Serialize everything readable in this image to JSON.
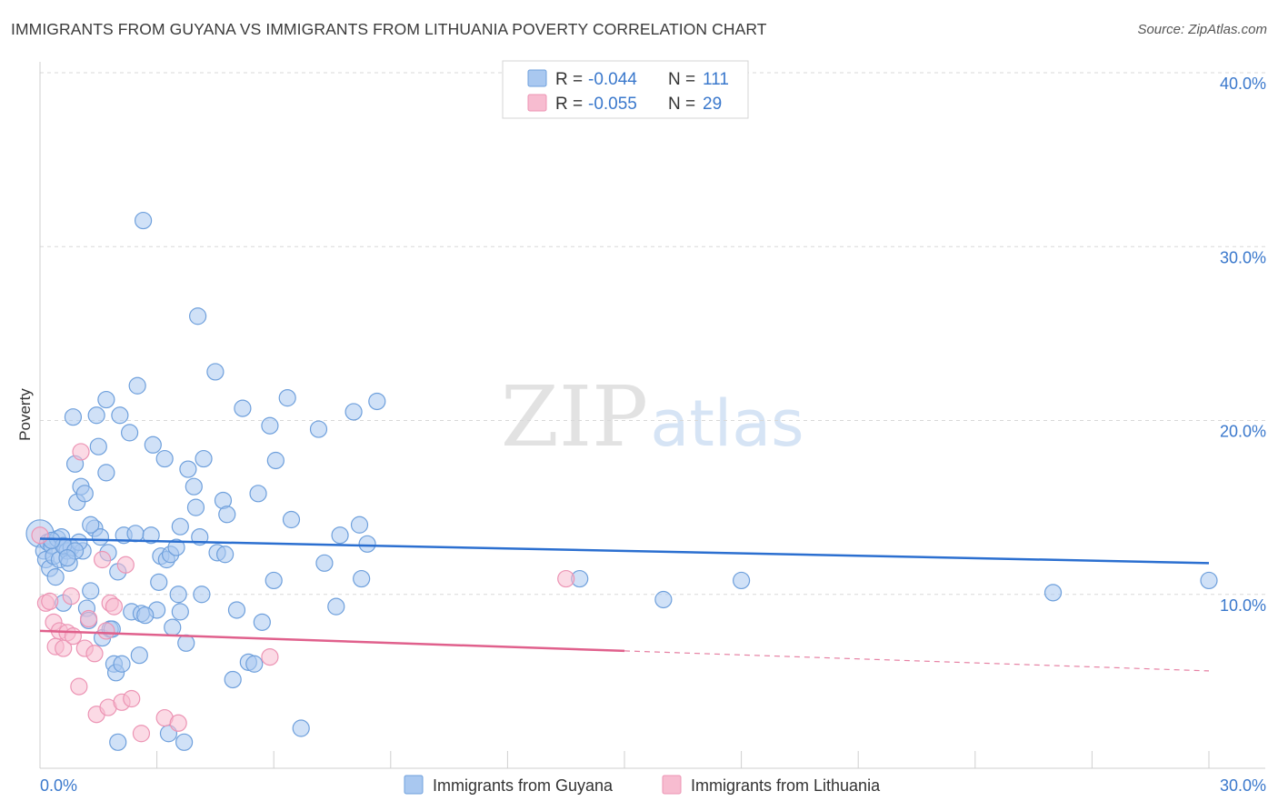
{
  "header": {
    "title": "IMMIGRANTS FROM GUYANA VS IMMIGRANTS FROM LITHUANIA POVERTY CORRELATION CHART",
    "source": "Source: ZipAtlas.com"
  },
  "watermark": {
    "zip": "ZIP",
    "atlas": "atlas"
  },
  "legend_top": [
    {
      "r_label": "R = ",
      "r_value": "-0.044",
      "n_label": "N = ",
      "n_value": "111"
    },
    {
      "r_label": "R = ",
      "r_value": "-0.055",
      "n_label": "N = ",
      "n_value": "29"
    }
  ],
  "colors": {
    "guyana_fill": "#a9c8f0",
    "guyana_stroke": "#6fa0dc",
    "guyana_line": "#2b6fd0",
    "lithuania_fill": "#f7bcd0",
    "lithuania_stroke": "#ec94b4",
    "lithuania_line": "#e0608c",
    "tick_label": "#3a78cc",
    "grid": "#d8d8d8"
  },
  "chart_data": {
    "type": "scatter",
    "title": "IMMIGRANTS FROM GUYANA VS IMMIGRANTS FROM LITHUANIA POVERTY CORRELATION CHART",
    "xlabel": "",
    "ylabel": "Poverty",
    "xlim": [
      0,
      30
    ],
    "ylim": [
      0,
      40
    ],
    "x_tick_labels": [
      "0.0%",
      "30.0%"
    ],
    "y_tick_labels": [
      "10.0%",
      "20.0%",
      "30.0%",
      "40.0%"
    ],
    "y_ticks": [
      10,
      20,
      30,
      40
    ],
    "grid": true,
    "legend_position": "bottom",
    "series": [
      {
        "name": "Immigrants from Guyana",
        "R": -0.044,
        "N": 111,
        "trend": {
          "x": [
            0,
            30
          ],
          "y": [
            13.2,
            11.8
          ],
          "dashed_from": null
        },
        "points": [
          [
            0.0,
            13.5
          ],
          [
            0.1,
            12.5
          ],
          [
            0.15,
            12.0
          ],
          [
            0.2,
            13.0
          ],
          [
            0.25,
            11.5
          ],
          [
            0.3,
            12.8
          ],
          [
            0.35,
            12.2
          ],
          [
            0.4,
            11.0
          ],
          [
            0.45,
            13.2
          ],
          [
            0.5,
            12.0
          ],
          [
            0.55,
            13.3
          ],
          [
            0.6,
            9.5
          ],
          [
            0.65,
            12.7
          ],
          [
            0.7,
            12.5
          ],
          [
            0.75,
            11.8
          ],
          [
            0.8,
            12.7
          ],
          [
            0.85,
            20.2
          ],
          [
            0.9,
            17.5
          ],
          [
            0.95,
            15.3
          ],
          [
            1.05,
            16.2
          ],
          [
            1.1,
            12.5
          ],
          [
            1.15,
            15.8
          ],
          [
            1.2,
            9.2
          ],
          [
            1.25,
            8.5
          ],
          [
            1.3,
            10.2
          ],
          [
            1.4,
            13.8
          ],
          [
            1.45,
            20.3
          ],
          [
            1.5,
            18.5
          ],
          [
            1.55,
            13.3
          ],
          [
            1.6,
            7.5
          ],
          [
            1.7,
            21.2
          ],
          [
            1.7,
            17.0
          ],
          [
            1.75,
            12.4
          ],
          [
            1.8,
            8.0
          ],
          [
            1.85,
            8.0
          ],
          [
            1.9,
            6.0
          ],
          [
            1.95,
            5.5
          ],
          [
            2.0,
            1.5
          ],
          [
            2.0,
            11.3
          ],
          [
            2.05,
            20.3
          ],
          [
            2.15,
            13.4
          ],
          [
            2.3,
            19.3
          ],
          [
            2.35,
            9.0
          ],
          [
            2.45,
            13.5
          ],
          [
            2.5,
            22.0
          ],
          [
            2.55,
            6.5
          ],
          [
            2.6,
            8.9
          ],
          [
            2.65,
            31.5
          ],
          [
            2.85,
            13.4
          ],
          [
            2.9,
            18.6
          ],
          [
            3.0,
            9.1
          ],
          [
            3.05,
            10.7
          ],
          [
            3.1,
            12.2
          ],
          [
            3.2,
            17.8
          ],
          [
            3.25,
            12.0
          ],
          [
            3.3,
            2.0
          ],
          [
            3.35,
            12.3
          ],
          [
            3.4,
            8.1
          ],
          [
            3.5,
            12.7
          ],
          [
            3.55,
            10.0
          ],
          [
            3.6,
            13.9
          ],
          [
            3.7,
            1.5
          ],
          [
            3.75,
            7.2
          ],
          [
            3.8,
            17.2
          ],
          [
            3.95,
            16.2
          ],
          [
            4.05,
            26.0
          ],
          [
            4.1,
            13.3
          ],
          [
            4.15,
            10.0
          ],
          [
            4.2,
            17.8
          ],
          [
            4.5,
            22.8
          ],
          [
            4.55,
            12.4
          ],
          [
            4.7,
            15.4
          ],
          [
            4.75,
            12.3
          ],
          [
            4.8,
            14.6
          ],
          [
            4.95,
            5.1
          ],
          [
            5.05,
            9.1
          ],
          [
            5.2,
            20.7
          ],
          [
            5.35,
            6.1
          ],
          [
            5.5,
            6.0
          ],
          [
            5.7,
            8.4
          ],
          [
            5.9,
            19.7
          ],
          [
            6.0,
            10.8
          ],
          [
            6.05,
            17.7
          ],
          [
            6.35,
            21.3
          ],
          [
            6.45,
            14.3
          ],
          [
            6.7,
            2.3
          ],
          [
            7.15,
            19.5
          ],
          [
            7.3,
            11.8
          ],
          [
            7.6,
            9.3
          ],
          [
            7.7,
            13.4
          ],
          [
            8.05,
            20.5
          ],
          [
            8.2,
            14.0
          ],
          [
            8.25,
            10.9
          ],
          [
            8.4,
            12.9
          ],
          [
            8.65,
            21.1
          ],
          [
            13.85,
            10.9
          ],
          [
            16.0,
            9.7
          ],
          [
            18.0,
            10.8
          ],
          [
            26.0,
            10.1
          ],
          [
            30.0,
            10.8
          ],
          [
            0.6,
            12.8
          ],
          [
            1.0,
            13.0
          ],
          [
            0.9,
            12.5
          ],
          [
            2.1,
            6.0
          ],
          [
            3.6,
            9.0
          ],
          [
            4.0,
            15.0
          ],
          [
            5.6,
            15.8
          ],
          [
            1.3,
            14.0
          ],
          [
            2.7,
            8.8
          ],
          [
            0.3,
            13.1
          ],
          [
            0.7,
            12.1
          ]
        ]
      },
      {
        "name": "Immigrants from Lithuania",
        "R": -0.055,
        "N": 29,
        "trend": {
          "x": [
            0,
            30
          ],
          "y": [
            7.9,
            5.6
          ],
          "dashed_from": 15
        },
        "points": [
          [
            0.0,
            13.4
          ],
          [
            0.15,
            9.5
          ],
          [
            0.25,
            9.6
          ],
          [
            0.35,
            8.4
          ],
          [
            0.4,
            7.0
          ],
          [
            0.5,
            7.9
          ],
          [
            0.6,
            6.9
          ],
          [
            0.7,
            7.8
          ],
          [
            0.8,
            9.9
          ],
          [
            0.85,
            7.6
          ],
          [
            1.0,
            4.7
          ],
          [
            1.05,
            18.2
          ],
          [
            1.15,
            6.9
          ],
          [
            1.25,
            8.6
          ],
          [
            1.4,
            6.6
          ],
          [
            1.45,
            3.1
          ],
          [
            1.6,
            12.0
          ],
          [
            1.7,
            7.9
          ],
          [
            1.75,
            3.5
          ],
          [
            1.8,
            9.5
          ],
          [
            1.9,
            9.3
          ],
          [
            2.1,
            3.8
          ],
          [
            2.2,
            11.7
          ],
          [
            2.35,
            4.0
          ],
          [
            2.6,
            2.0
          ],
          [
            3.2,
            2.9
          ],
          [
            3.55,
            2.6
          ],
          [
            5.9,
            6.4
          ],
          [
            13.5,
            10.9
          ]
        ]
      }
    ]
  },
  "legend_bottom": [
    {
      "label": "Immigrants from Guyana"
    },
    {
      "label": "Immigrants from Lithuania"
    }
  ]
}
